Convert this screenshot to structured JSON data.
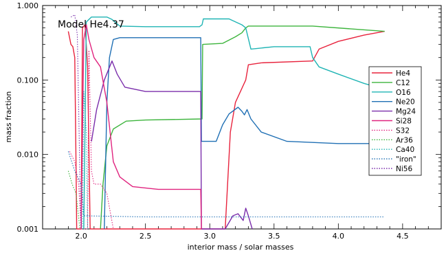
{
  "chart_data": {
    "type": "line",
    "title": "Model He4.37",
    "xlabel": "interior mass / solar masses",
    "ylabel": "mass fraction",
    "xlim": [
      1.7,
      4.8
    ],
    "ylim": [
      0.001,
      1.0
    ],
    "yscale": "log",
    "grid": false,
    "legend_position": "right",
    "x_ticks": [
      "2.0",
      "2.5",
      "3.0",
      "3.5",
      "4.0",
      "4.5"
    ],
    "y_ticks": [
      "0.001",
      "0.010",
      "0.100",
      "1.000"
    ],
    "series": [
      {
        "name": "He4",
        "color": "#e8223c",
        "dash": "solid",
        "points": [
          [
            1.9,
            0.45
          ],
          [
            1.92,
            0.3
          ],
          [
            1.935,
            0.28
          ],
          [
            1.95,
            0.2
          ],
          [
            1.96,
            0.008
          ],
          [
            1.965,
            0.001
          ],
          [
            2.0,
            0.001
          ],
          [
            2.01,
            0.5
          ],
          [
            2.03,
            0.55
          ],
          [
            2.05,
            0.15
          ],
          [
            2.07,
            0.001
          ],
          [
            3.12,
            0.001
          ],
          [
            3.16,
            0.02
          ],
          [
            3.2,
            0.05
          ],
          [
            3.28,
            0.1
          ],
          [
            3.3,
            0.16
          ],
          [
            3.4,
            0.17
          ],
          [
            3.8,
            0.18
          ],
          [
            3.85,
            0.26
          ],
          [
            4.0,
            0.33
          ],
          [
            4.2,
            0.4
          ],
          [
            4.36,
            0.45
          ]
        ]
      },
      {
        "name": "C12",
        "color": "#3cb43c",
        "dash": "solid",
        "points": [
          [
            2.15,
            0.001
          ],
          [
            2.17,
            0.004
          ],
          [
            2.2,
            0.013
          ],
          [
            2.25,
            0.022
          ],
          [
            2.35,
            0.028
          ],
          [
            2.5,
            0.029
          ],
          [
            2.94,
            0.03
          ],
          [
            2.945,
            0.3
          ],
          [
            3.1,
            0.31
          ],
          [
            3.2,
            0.38
          ],
          [
            3.25,
            0.43
          ],
          [
            3.28,
            0.5
          ],
          [
            3.3,
            0.53
          ],
          [
            3.5,
            0.53
          ],
          [
            3.8,
            0.53
          ],
          [
            4.36,
            0.45
          ]
        ]
      },
      {
        "name": "O16",
        "color": "#1fb4b4",
        "dash": "solid",
        "points": [
          [
            2.02,
            0.001
          ],
          [
            2.04,
            0.6
          ],
          [
            2.08,
            0.7
          ],
          [
            2.2,
            0.7
          ],
          [
            2.24,
            0.65
          ],
          [
            2.3,
            0.53
          ],
          [
            2.5,
            0.52
          ],
          [
            2.92,
            0.52
          ],
          [
            2.94,
            0.55
          ],
          [
            2.95,
            0.66
          ],
          [
            3.15,
            0.66
          ],
          [
            3.25,
            0.55
          ],
          [
            3.28,
            0.5
          ],
          [
            3.32,
            0.26
          ],
          [
            3.5,
            0.28
          ],
          [
            3.78,
            0.28
          ],
          [
            3.8,
            0.2
          ],
          [
            3.85,
            0.15
          ],
          [
            4.0,
            0.12
          ],
          [
            4.2,
            0.09
          ],
          [
            4.36,
            0.075
          ]
        ]
      },
      {
        "name": "Ne20",
        "color": "#1f6fb4",
        "dash": "solid",
        "points": [
          [
            2.18,
            0.001
          ],
          [
            2.2,
            0.05
          ],
          [
            2.22,
            0.2
          ],
          [
            2.25,
            0.35
          ],
          [
            2.3,
            0.37
          ],
          [
            2.93,
            0.37
          ],
          [
            2.935,
            0.015
          ],
          [
            3.05,
            0.015
          ],
          [
            3.1,
            0.025
          ],
          [
            3.15,
            0.035
          ],
          [
            3.22,
            0.043
          ],
          [
            3.25,
            0.038
          ],
          [
            3.27,
            0.034
          ],
          [
            3.29,
            0.04
          ],
          [
            3.32,
            0.03
          ],
          [
            3.4,
            0.02
          ],
          [
            3.6,
            0.015
          ],
          [
            4.0,
            0.014
          ],
          [
            4.36,
            0.014
          ]
        ]
      },
      {
        "name": "Mg24",
        "color": "#7a2dab",
        "dash": "solid",
        "points": [
          [
            2.08,
            0.015
          ],
          [
            2.12,
            0.04
          ],
          [
            2.18,
            0.1
          ],
          [
            2.24,
            0.18
          ],
          [
            2.28,
            0.12
          ],
          [
            2.34,
            0.08
          ],
          [
            2.5,
            0.07
          ],
          [
            2.93,
            0.07
          ],
          [
            2.935,
            0.001
          ],
          [
            3.12,
            0.001
          ],
          [
            3.18,
            0.0015
          ],
          [
            3.22,
            0.0016
          ],
          [
            3.26,
            0.0013
          ],
          [
            3.28,
            0.0019
          ],
          [
            3.3,
            0.0015
          ],
          [
            3.33,
            0.001
          ]
        ]
      },
      {
        "name": "Si28",
        "color": "#e0237e",
        "dash": "solid",
        "points": [
          [
            2.0,
            0.001
          ],
          [
            2.02,
            0.35
          ],
          [
            2.04,
            0.55
          ],
          [
            2.06,
            0.35
          ],
          [
            2.1,
            0.2
          ],
          [
            2.15,
            0.15
          ],
          [
            2.2,
            0.05
          ],
          [
            2.25,
            0.008
          ],
          [
            2.3,
            0.005
          ],
          [
            2.4,
            0.0037
          ],
          [
            2.6,
            0.0034
          ],
          [
            2.93,
            0.0034
          ],
          [
            2.935,
            0.001
          ]
        ]
      },
      {
        "name": "S32",
        "color": "#e0237e",
        "dash": "dotted",
        "points": [
          [
            1.91,
            0.011
          ],
          [
            1.95,
            0.008
          ],
          [
            1.98,
            0.004
          ],
          [
            2.0,
            0.001
          ],
          [
            2.05,
            0.001
          ],
          [
            2.06,
            0.25
          ],
          [
            2.08,
            0.006
          ],
          [
            2.1,
            0.004
          ],
          [
            2.15,
            0.004
          ],
          [
            2.2,
            0.003
          ],
          [
            2.25,
            0.001
          ]
        ]
      },
      {
        "name": "Ar36",
        "color": "#3cb43c",
        "dash": "dotted",
        "points": [
          [
            1.9,
            0.006
          ],
          [
            1.93,
            0.004
          ],
          [
            1.96,
            0.003
          ],
          [
            1.99,
            0.001
          ]
        ]
      },
      {
        "name": "Ca40",
        "color": "#1fb4b4",
        "dash": "dotted",
        "points": [
          [
            2.01,
            0.001
          ],
          [
            2.02,
            0.07
          ],
          [
            2.04,
            0.02
          ],
          [
            2.05,
            0.001
          ]
        ]
      },
      {
        "name": "\"iron\"",
        "color": "#1f6fb4",
        "dash": "dotted",
        "points": [
          [
            1.9,
            0.011
          ],
          [
            1.95,
            0.006
          ],
          [
            2.0,
            0.004
          ],
          [
            2.02,
            0.0015
          ],
          [
            2.5,
            0.00145
          ],
          [
            3.5,
            0.00145
          ],
          [
            4.36,
            0.00145
          ]
        ]
      },
      {
        "name": "Ni56",
        "color": "#7a2dab",
        "dash": "dotted",
        "points": [
          [
            1.92,
            0.7
          ],
          [
            1.95,
            0.75
          ],
          [
            1.97,
            0.4
          ],
          [
            1.99,
            0.005
          ],
          [
            2.0,
            0.001
          ]
        ]
      }
    ]
  }
}
